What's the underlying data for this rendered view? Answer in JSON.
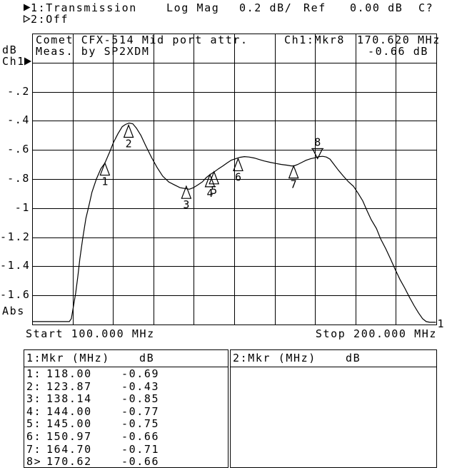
{
  "header": {
    "trace1_label": "1:Transmission",
    "format": "Log Mag",
    "scale": "0.2 dB/",
    "ref_label": "Ref",
    "ref_value": "0.00 dB",
    "cal_status": "C?",
    "trace2_label": "2:Off"
  },
  "y_axis": {
    "unit": "dB",
    "channel": "Ch1",
    "ticks": [
      "-.2",
      "-.4",
      "-.6",
      "-.8",
      "-1",
      "-1.2",
      "-1.4",
      "-1.6"
    ],
    "bottom_label": "Abs"
  },
  "x_axis": {
    "start_label": "Start 100.000 MHz",
    "stop_label": "Stop 200.000 MHz"
  },
  "plot": {
    "title_line1": "Comet CFX-514 Mid port attr.",
    "title_line2": "Meas. by SP2XDM",
    "readout_channel": "Ch1:Mkr8",
    "readout_frequency": "170.620 MHz",
    "readout_value": "-0.66 dB",
    "trace_number": "1"
  },
  "chart_data": {
    "type": "line",
    "title": "Comet CFX-514 Mid port attr.",
    "x_unit": "MHz",
    "y_unit": "dB",
    "x_range": [
      100,
      200
    ],
    "y_range": [
      -1.8,
      0.2
    ],
    "y_per_division": 0.2,
    "x_divisions": 10,
    "reference_db": 0.0,
    "grid": true,
    "trace_points": [
      [
        100.0,
        -1.78
      ],
      [
        109.2,
        -1.78
      ],
      [
        109.7,
        -1.76
      ],
      [
        110.2,
        -1.68
      ],
      [
        110.8,
        -1.58
      ],
      [
        111.3,
        -1.47
      ],
      [
        111.8,
        -1.35
      ],
      [
        112.5,
        -1.21
      ],
      [
        113.3,
        -1.07
      ],
      [
        114.0,
        -0.99
      ],
      [
        114.8,
        -0.89
      ],
      [
        115.9,
        -0.8
      ],
      [
        117.0,
        -0.73
      ],
      [
        118.0,
        -0.69
      ],
      [
        119.1,
        -0.62
      ],
      [
        120.1,
        -0.55
      ],
      [
        121.2,
        -0.49
      ],
      [
        122.3,
        -0.44
      ],
      [
        123.1,
        -0.425
      ],
      [
        124.0,
        -0.415
      ],
      [
        124.9,
        -0.42
      ],
      [
        125.8,
        -0.45
      ],
      [
        126.9,
        -0.5
      ],
      [
        128.1,
        -0.57
      ],
      [
        129.5,
        -0.65
      ],
      [
        130.9,
        -0.72
      ],
      [
        132.3,
        -0.78
      ],
      [
        133.8,
        -0.82
      ],
      [
        135.2,
        -0.84
      ],
      [
        136.6,
        -0.86
      ],
      [
        137.8,
        -0.865
      ],
      [
        138.9,
        -0.87
      ],
      [
        139.9,
        -0.86
      ],
      [
        141.0,
        -0.84
      ],
      [
        142.1,
        -0.82
      ],
      [
        143.1,
        -0.79
      ],
      [
        144.0,
        -0.77
      ],
      [
        145.1,
        -0.75
      ],
      [
        146.1,
        -0.73
      ],
      [
        147.2,
        -0.71
      ],
      [
        148.2,
        -0.69
      ],
      [
        149.3,
        -0.67
      ],
      [
        150.4,
        -0.66
      ],
      [
        151.4,
        -0.651
      ],
      [
        152.5,
        -0.646
      ],
      [
        153.7,
        -0.649
      ],
      [
        155.0,
        -0.656
      ],
      [
        156.2,
        -0.666
      ],
      [
        157.4,
        -0.676
      ],
      [
        158.8,
        -0.685
      ],
      [
        160.3,
        -0.693
      ],
      [
        161.7,
        -0.7
      ],
      [
        163.1,
        -0.705
      ],
      [
        164.1,
        -0.71
      ],
      [
        164.8,
        -0.71
      ],
      [
        165.7,
        -0.7
      ],
      [
        166.8,
        -0.685
      ],
      [
        167.8,
        -0.671
      ],
      [
        168.9,
        -0.661
      ],
      [
        170.0,
        -0.654
      ],
      [
        171.0,
        -0.646
      ],
      [
        171.9,
        -0.644
      ],
      [
        172.8,
        -0.649
      ],
      [
        173.7,
        -0.663
      ],
      [
        174.7,
        -0.7
      ],
      [
        175.8,
        -0.74
      ],
      [
        177.0,
        -0.78
      ],
      [
        178.3,
        -0.82
      ],
      [
        179.5,
        -0.85
      ],
      [
        180.7,
        -0.9
      ],
      [
        181.8,
        -0.95
      ],
      [
        182.9,
        -1.02
      ],
      [
        183.9,
        -1.08
      ],
      [
        185.2,
        -1.14
      ],
      [
        186.2,
        -1.21
      ],
      [
        187.5,
        -1.28
      ],
      [
        188.7,
        -1.35
      ],
      [
        189.8,
        -1.42
      ],
      [
        191.0,
        -1.49
      ],
      [
        192.2,
        -1.55
      ],
      [
        193.3,
        -1.61
      ],
      [
        194.5,
        -1.67
      ],
      [
        195.6,
        -1.72
      ],
      [
        196.6,
        -1.76
      ],
      [
        197.5,
        -1.78
      ],
      [
        198.4,
        -1.785
      ],
      [
        199.9,
        -1.785
      ]
    ],
    "markers": [
      {
        "label": "1",
        "mhz": 118.0,
        "db": -0.69,
        "active": false
      },
      {
        "label": "2",
        "mhz": 123.87,
        "db": -0.43,
        "active": false
      },
      {
        "label": "3",
        "mhz": 138.14,
        "db": -0.85,
        "active": false
      },
      {
        "label": "4",
        "mhz": 144.0,
        "db": -0.77,
        "active": false
      },
      {
        "label": "5",
        "mhz": 145.0,
        "db": -0.75,
        "active": false
      },
      {
        "label": "6",
        "mhz": 150.97,
        "db": -0.66,
        "active": false
      },
      {
        "label": "7",
        "mhz": 164.7,
        "db": -0.71,
        "active": false
      },
      {
        "label": "8",
        "mhz": 170.62,
        "db": -0.66,
        "active": true
      }
    ]
  },
  "marker_tables": [
    {
      "header": "1:Mkr (MHz)",
      "unit_header": "dB",
      "rows": [
        [
          "1:",
          "118.00",
          "-0.69"
        ],
        [
          "2:",
          "123.87",
          "-0.43"
        ],
        [
          "3:",
          "138.14",
          "-0.85"
        ],
        [
          "4:",
          "144.00",
          "-0.77"
        ],
        [
          "5:",
          "145.00",
          "-0.75"
        ],
        [
          "6:",
          "150.97",
          "-0.66"
        ],
        [
          "7:",
          "164.70",
          "-0.71"
        ],
        [
          "8>",
          "170.62",
          "-0.66"
        ]
      ]
    },
    {
      "header": "2:Mkr (MHz)",
      "unit_header": "dB",
      "rows": []
    }
  ]
}
